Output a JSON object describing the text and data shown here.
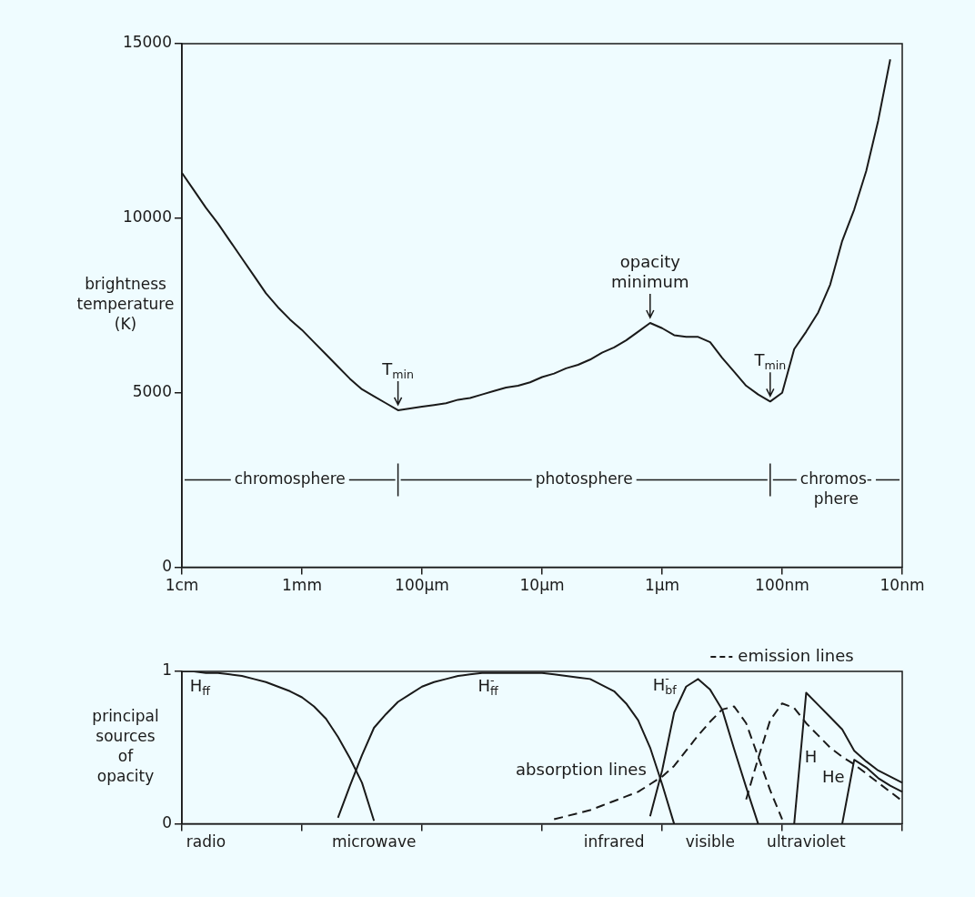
{
  "chart_data": [
    {
      "type": "line",
      "ylabel": "brightness temperature (K)",
      "categories": [
        "1cm",
        null,
        null,
        null,
        null,
        null,
        null,
        null,
        null,
        null,
        "1mm",
        null,
        null,
        null,
        null,
        null,
        null,
        null,
        null,
        null,
        "100µm",
        null,
        null,
        null,
        null,
        null,
        null,
        null,
        null,
        null,
        "10µm",
        null,
        null,
        null,
        null,
        null,
        null,
        null,
        null,
        null,
        "1µm",
        null,
        null,
        null,
        null,
        null,
        null,
        null,
        null,
        null,
        "100nm",
        null,
        null,
        null,
        null,
        null,
        null,
        null,
        null,
        null,
        "10nm"
      ],
      "ylim": [
        0,
        15000
      ],
      "yticks": [
        0,
        5000,
        10000,
        15000
      ],
      "marker": "none",
      "series": [
        {
          "color": "#1a1a1a",
          "line_style": "solid",
          "values": [
            11300,
            10800,
            10300,
            9850,
            9350,
            8850,
            8350,
            7850,
            7450,
            7100,
            6800,
            6450,
            6100,
            5750,
            5400,
            5100,
            4900,
            4700,
            4500,
            4550,
            4600,
            4650,
            4700,
            4800,
            4850,
            4950,
            5050,
            5150,
            5200,
            5300,
            5450,
            5550,
            5700,
            5800,
            5950,
            6150,
            6300,
            6500,
            6750,
            7000,
            6850,
            6650,
            6600,
            6600,
            6450,
            6000,
            5600,
            5200,
            4950,
            4750,
            5000,
            6250,
            6750,
            7300,
            8100,
            9350,
            10250,
            11350,
            12800,
            14550,
            null
          ]
        }
      ],
      "annotations": [
        {
          "text": "T$_{min}$",
          "y": 4500
        },
        {
          "text": "opacity minimum",
          "y": 7000
        },
        {
          "text": "T$_{min}$",
          "y": 4750
        },
        "chromosphere",
        "photosphere",
        "chromos-\nphere"
      ]
    },
    {
      "type": "line",
      "ylabel": "principal sources of opacity",
      "categories": [
        null,
        null,
        "radio",
        null,
        null,
        null,
        null,
        null,
        null,
        null,
        null,
        null,
        null,
        null,
        null,
        null,
        "microwave",
        null,
        null,
        null,
        null,
        null,
        null,
        null,
        null,
        null,
        null,
        null,
        null,
        null,
        null,
        null,
        null,
        null,
        null,
        null,
        "infrared",
        null,
        null,
        null,
        null,
        null,
        null,
        null,
        "visible",
        null,
        null,
        null,
        null,
        null,
        null,
        null,
        "ultraviolet",
        null,
        null,
        null,
        null,
        null,
        null,
        null,
        null
      ],
      "ylim": [
        0,
        1
      ],
      "yticks": [
        0,
        1
      ],
      "marker": "none",
      "series": [
        {
          "name": "H$_{ff}$",
          "color": "#1a1a1a",
          "line_style": "solid",
          "values": [
            1,
            1,
            0.99,
            0.99,
            0.98,
            0.97,
            0.95,
            0.93,
            0.9,
            0.87,
            0.83,
            0.77,
            0.69,
            0.57,
            0.43,
            0.27,
            0.02,
            null,
            null,
            null,
            null,
            null,
            null,
            null,
            null,
            null,
            null,
            null,
            null,
            null,
            null,
            null,
            null,
            null,
            null,
            null,
            null,
            null,
            null,
            null,
            null,
            null,
            null,
            null,
            null,
            null,
            null,
            null,
            null,
            null,
            null,
            null,
            null,
            null,
            null,
            null,
            null,
            null,
            null,
            null,
            null
          ]
        },
        {
          "name": "H$^{-}$$_{ff}$",
          "color": "#1a1a1a",
          "line_style": "solid",
          "values": [
            null,
            null,
            null,
            null,
            null,
            null,
            null,
            null,
            null,
            null,
            null,
            null,
            null,
            0.04,
            0.25,
            0.45,
            0.63,
            0.72,
            0.8,
            0.85,
            0.9,
            0.93,
            0.95,
            0.97,
            0.98,
            0.99,
            0.99,
            0.99,
            0.99,
            0.99,
            0.99,
            0.98,
            0.97,
            0.96,
            0.95,
            0.91,
            0.87,
            0.79,
            0.68,
            0.5,
            0.26,
            0,
            null,
            null,
            null,
            null,
            null,
            null,
            null,
            null,
            null,
            null,
            null,
            null,
            null,
            null,
            null,
            null,
            null,
            null,
            null
          ]
        },
        {
          "name": "H$^{-}$$_{bf}$",
          "color": "#1a1a1a",
          "line_style": "solid",
          "values": [
            null,
            null,
            null,
            null,
            null,
            null,
            null,
            null,
            null,
            null,
            null,
            null,
            null,
            null,
            null,
            null,
            null,
            null,
            null,
            null,
            null,
            null,
            null,
            null,
            null,
            null,
            null,
            null,
            null,
            null,
            null,
            null,
            null,
            null,
            null,
            null,
            null,
            null,
            null,
            0.05,
            0.35,
            0.73,
            0.9,
            0.95,
            0.88,
            0.75,
            0.49,
            0.24,
            0,
            null,
            null,
            null,
            null,
            null,
            null,
            null,
            null,
            null,
            null,
            null,
            null
          ]
        },
        {
          "name": "absorption lines",
          "color": "#1a1a1a",
          "line_style": "dashed",
          "values": [
            null,
            null,
            null,
            null,
            null,
            null,
            null,
            null,
            null,
            null,
            null,
            null,
            null,
            null,
            null,
            null,
            null,
            null,
            null,
            null,
            null,
            null,
            null,
            null,
            null,
            null,
            null,
            null,
            null,
            null,
            null,
            0.03,
            0.05,
            0.07,
            0.09,
            0.12,
            0.15,
            0.18,
            0.21,
            0.26,
            0.31,
            0.38,
            0.48,
            0.58,
            0.67,
            0.75,
            0.77,
            0.66,
            0.44,
            0.22,
            0.03,
            null,
            null,
            null,
            null,
            null,
            null,
            null,
            null,
            null,
            null
          ]
        },
        {
          "name": "emission lines",
          "color": "#1a1a1a",
          "line_style": "dashed",
          "values": [
            null,
            null,
            null,
            null,
            null,
            null,
            null,
            null,
            null,
            null,
            null,
            null,
            null,
            null,
            null,
            null,
            null,
            null,
            null,
            null,
            null,
            null,
            null,
            null,
            null,
            null,
            null,
            null,
            null,
            null,
            null,
            null,
            null,
            null,
            null,
            null,
            null,
            null,
            null,
            null,
            null,
            null,
            null,
            null,
            null,
            null,
            null,
            0.16,
            0.43,
            0.68,
            0.79,
            0.76,
            0.66,
            0.58,
            0.5,
            0.44,
            0.39,
            0.33,
            0.27,
            0.21,
            0.15
          ]
        },
        {
          "name": "H",
          "color": "#1a1a1a",
          "line_style": "solid",
          "values": [
            null,
            null,
            null,
            null,
            null,
            null,
            null,
            null,
            null,
            null,
            null,
            null,
            null,
            null,
            null,
            null,
            null,
            null,
            null,
            null,
            null,
            null,
            null,
            null,
            null,
            null,
            null,
            null,
            null,
            null,
            null,
            null,
            null,
            null,
            null,
            null,
            null,
            null,
            null,
            null,
            null,
            null,
            null,
            null,
            null,
            null,
            null,
            null,
            null,
            null,
            null,
            0,
            0.86,
            0.78,
            0.7,
            0.62,
            0.48,
            0.41,
            0.35,
            0.31,
            0.27
          ]
        },
        {
          "name": "He",
          "color": "#1a1a1a",
          "line_style": "solid",
          "values": [
            null,
            null,
            null,
            null,
            null,
            null,
            null,
            null,
            null,
            null,
            null,
            null,
            null,
            null,
            null,
            null,
            null,
            null,
            null,
            null,
            null,
            null,
            null,
            null,
            null,
            null,
            null,
            null,
            null,
            null,
            null,
            null,
            null,
            null,
            null,
            null,
            null,
            null,
            null,
            null,
            null,
            null,
            null,
            null,
            null,
            null,
            null,
            null,
            null,
            null,
            null,
            null,
            null,
            null,
            null,
            0,
            0.42,
            0.37,
            0.3,
            0.25,
            0.21
          ]
        }
      ]
    }
  ]
}
